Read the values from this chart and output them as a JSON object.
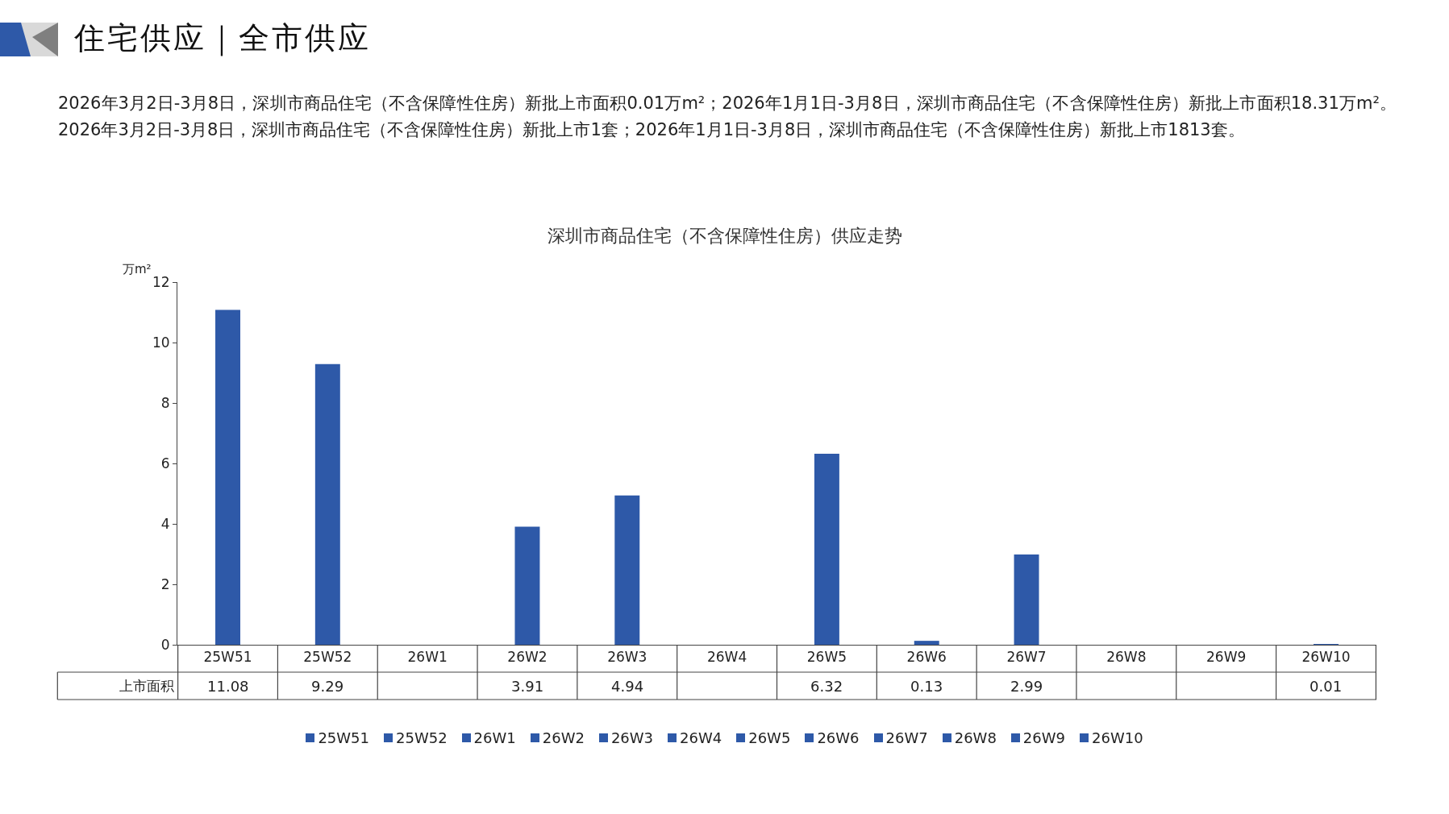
{
  "chart_data": {
    "type": "bar",
    "title": "深圳市商品住宅（不含保障性住房）供应走势",
    "ylabel": "万m²",
    "annotations": [
      "住宅供应｜全市供应",
      "2026年3月2日-3月8日，深圳市商品住宅（不含保障性住房）新批上市面积0.01万m²；2026年1月1日-3月8日，深圳市商品住宅（不含保障性住房）新批上市面积18.31万m²。2026年3月2日-3月8日，深圳市商品住宅（不含保障性住房）新批上市1套；2026年1月1日-3月8日，深圳市商品住宅（不含保障性住房）新批上市1813套。"
    ],
    "categories": [
      "25W51",
      "25W52",
      "26W1",
      "26W2",
      "26W3",
      "26W4",
      "26W5",
      "26W6",
      "26W7",
      "26W8",
      "26W9",
      "26W10"
    ],
    "series": [
      {
        "name": "上市面积",
        "color": "#2e59a8",
        "values": [
          11.08,
          9.29,
          null,
          3.91,
          4.94,
          null,
          6.32,
          0.13,
          2.99,
          null,
          null,
          0.01
        ]
      }
    ],
    "ylim": [
      0,
      12
    ],
    "yticks": [
      0,
      2,
      4,
      6,
      8,
      10,
      12
    ],
    "grid": false,
    "legend": "bottom",
    "data_labels": true
  }
}
